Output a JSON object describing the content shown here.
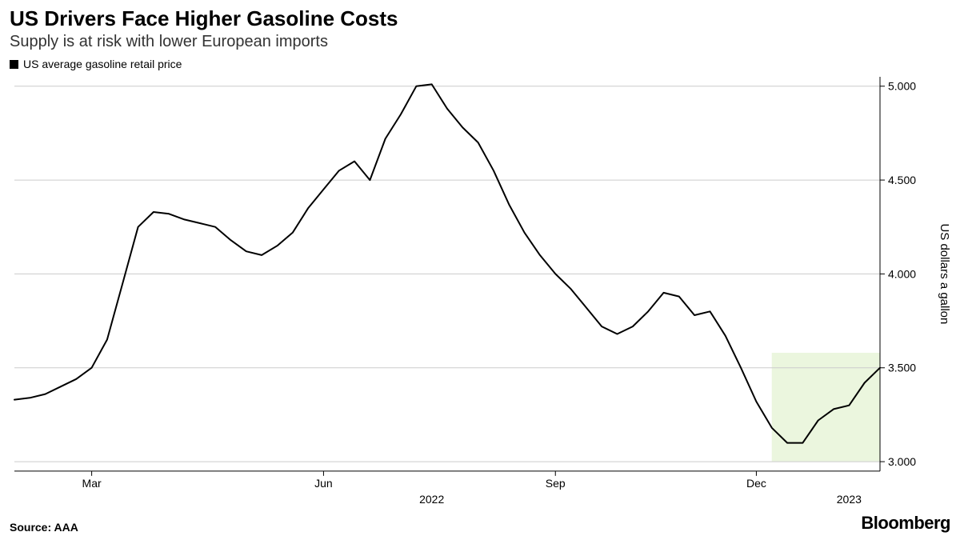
{
  "header": {
    "title": "US Drivers Face Higher Gasoline Costs",
    "subtitle": "Supply is at risk with lower European imports"
  },
  "legend": {
    "series_label": "US average gasoline retail price",
    "swatch_color": "#000000"
  },
  "chart": {
    "type": "line",
    "background_color": "#ffffff",
    "grid_color": "#cccccc",
    "line_color": "#000000",
    "line_width": 2,
    "highlight": {
      "fill": "#ddf0c8",
      "opacity": 0.6,
      "x_start": 49,
      "x_end": 56,
      "y_min": 3.0,
      "y_max": 3.58
    },
    "y_axis": {
      "title": "US dollars a gallon",
      "min": 2.95,
      "max": 5.05,
      "ticks": [
        3.0,
        3.5,
        4.0,
        4.5,
        5.0
      ],
      "tick_labels": [
        "3.000",
        "3.500",
        "4.000",
        "4.500",
        "5.000"
      ],
      "tick_fontsize": 14
    },
    "x_axis": {
      "month_labels": [
        {
          "pos": 5,
          "label": "Mar"
        },
        {
          "pos": 20,
          "label": "Jun"
        },
        {
          "pos": 35,
          "label": "Sep"
        },
        {
          "pos": 48,
          "label": "Dec"
        }
      ],
      "year_labels": [
        {
          "pos": 27,
          "label": "2022"
        },
        {
          "pos": 54,
          "label": "2023"
        }
      ]
    },
    "series": {
      "name": "US average gasoline retail price",
      "values": [
        3.33,
        3.34,
        3.36,
        3.4,
        3.44,
        3.5,
        3.65,
        3.95,
        4.25,
        4.33,
        4.32,
        4.29,
        4.27,
        4.25,
        4.18,
        4.12,
        4.1,
        4.15,
        4.22,
        4.35,
        4.45,
        4.55,
        4.6,
        4.5,
        4.72,
        4.85,
        5.0,
        5.01,
        4.88,
        4.78,
        4.7,
        4.55,
        4.37,
        4.22,
        4.1,
        4.0,
        3.92,
        3.82,
        3.72,
        3.68,
        3.72,
        3.8,
        3.9,
        3.88,
        3.78,
        3.8,
        3.67,
        3.5,
        3.32,
        3.18,
        3.1,
        3.1,
        3.22,
        3.28,
        3.3,
        3.42,
        3.5
      ]
    }
  },
  "footer": {
    "source": "Source: AAA",
    "brand": "Bloomberg"
  }
}
